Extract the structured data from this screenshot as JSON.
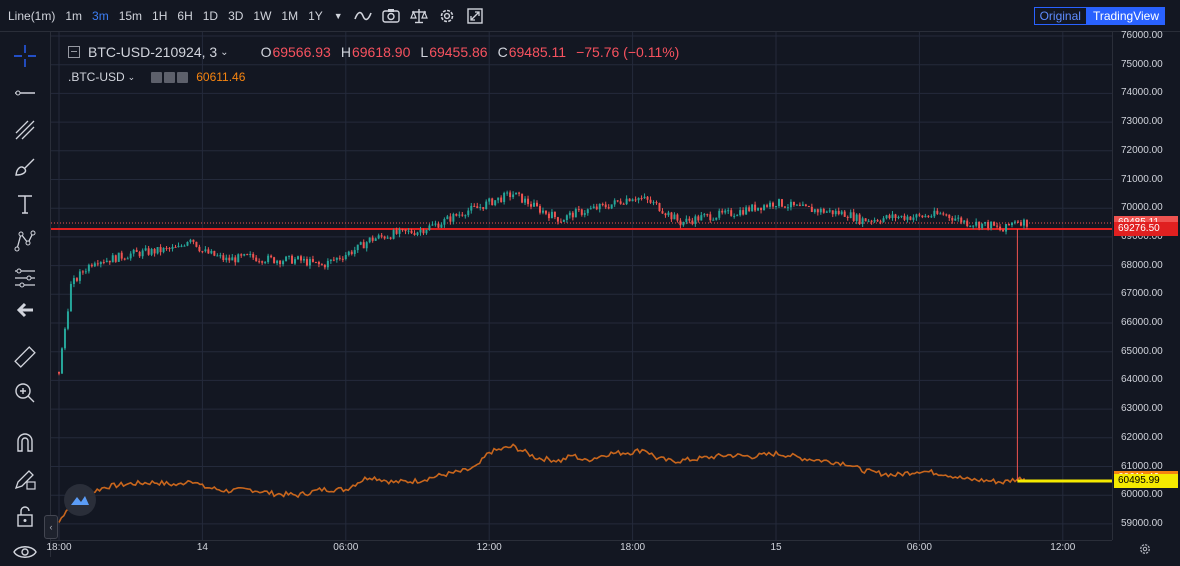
{
  "toolbar": {
    "chart_type": "Line(1m)",
    "timeframes": [
      "1m",
      "3m",
      "15m",
      "1H",
      "6H",
      "1D",
      "3D",
      "1W",
      "1M",
      "1Y"
    ],
    "selected_timeframe": "3m",
    "icons": [
      "caret-down-icon",
      "indicator-wave-icon",
      "camera-icon",
      "scales-icon",
      "gear-icon",
      "fullscreen-icon"
    ],
    "view_original": "Original",
    "view_tradingview": "TradingView"
  },
  "left_tools": [
    "crosshair-icon",
    "horizontal-line-icon",
    "trend-lines-icon",
    "brush-icon",
    "text-icon",
    "pattern-icon",
    "fib-tool-icon",
    "arrow-left-icon",
    "ruler-icon",
    "zoom-in-icon",
    "magnet-icon",
    "lock-draw-icon",
    "unlock-icon",
    "eye-icon"
  ],
  "legend": {
    "symbol": "BTC-USD-210924, 3",
    "o_label": "O",
    "o_value": "69566.93",
    "h_label": "H",
    "h_value": "69618.90",
    "l_label": "L",
    "l_value": "69455.86",
    "c_label": "C",
    "c_value": "69485.11",
    "change": "−75.76 (−0.11%)",
    "index_symbol": ".BTC-USD",
    "index_value": "60611.46"
  },
  "colors": {
    "background": "#131722",
    "grid": "#242a3b",
    "up": "#26a69a",
    "down": "#ef5350",
    "index_line": "#c8661d",
    "flat_line": "#f5ea00",
    "accent": "#2962ff"
  },
  "chart_data": {
    "type": "line",
    "title": "BTC-USD-210924, 3",
    "xlabel": "",
    "ylabel": "",
    "ylim": [
      58800,
      76100
    ],
    "yticks": [
      59000,
      60000,
      61000,
      62000,
      63000,
      64000,
      65000,
      66000,
      67000,
      68000,
      69000,
      70000,
      71000,
      72000,
      73000,
      74000,
      75000,
      76000
    ],
    "ytick_labels": [
      "59000.00",
      "60000.00",
      "61000.00",
      "62000.00",
      "63000.00",
      "64000.00",
      "65000.00",
      "66000.00",
      "67000.00",
      "68000.00",
      "69000.00",
      "70000.00",
      "71000.00",
      "72000.00",
      "73000.00",
      "74000.00",
      "75000.00",
      "76000.00"
    ],
    "xlim_hours": [
      0,
      48.6
    ],
    "xticks_hours": [
      0,
      6,
      12,
      18,
      24,
      30,
      36,
      42,
      48
    ],
    "xtick_labels": [
      "18:00",
      "14",
      "06:00",
      "12:00",
      "18:00",
      "15",
      "06:00",
      "12:00",
      ""
    ],
    "series": [
      {
        "name": "BTC-USD-210924",
        "style": "candles",
        "x_hours": [
          0,
          0.5,
          1,
          1.5,
          2,
          3,
          4,
          5,
          5.5,
          6,
          7,
          8,
          9,
          10,
          11,
          12,
          12.5,
          13,
          14,
          15,
          16,
          17,
          17.5,
          18,
          19,
          20,
          21,
          21.5,
          22,
          23,
          24,
          24.5,
          25,
          25.5,
          26,
          27,
          28,
          29,
          30,
          30.5,
          31,
          32,
          33,
          33.5,
          34,
          35,
          36,
          37,
          38,
          39,
          39.5,
          40,
          40.5
        ],
        "y": [
          64300,
          67300,
          67800,
          68200,
          68200,
          68400,
          68500,
          68600,
          69000,
          68500,
          68200,
          68300,
          68200,
          68200,
          68000,
          68400,
          68600,
          68900,
          69100,
          69200,
          69500,
          69900,
          70000,
          70200,
          70500,
          70000,
          69600,
          69800,
          69900,
          70100,
          70400,
          70300,
          70100,
          69800,
          69500,
          69700,
          69800,
          70000,
          70200,
          70100,
          70000,
          69900,
          69800,
          69600,
          69600,
          69700,
          69700,
          69800,
          69500,
          69400,
          69200,
          69600,
          69485.11
        ]
      },
      {
        "name": ".BTC-USD",
        "style": "line",
        "x_hours": [
          0,
          0.3,
          1,
          1.5,
          2,
          3,
          4,
          5,
          5.5,
          6,
          7,
          8,
          9,
          10,
          11,
          12,
          12.5,
          13,
          14,
          15,
          16,
          17,
          17.5,
          18,
          19,
          20,
          21,
          21.5,
          22,
          23,
          24,
          24.5,
          25,
          25.5,
          26,
          27,
          28,
          29,
          30,
          30.5,
          31,
          32,
          33,
          33.5,
          34,
          35,
          36,
          37,
          38,
          39,
          39.5,
          40,
          40.5
        ],
        "y": [
          59050,
          59500,
          59800,
          60150,
          60300,
          60400,
          60450,
          60350,
          60550,
          60300,
          60150,
          60200,
          60050,
          60000,
          60200,
          60200,
          60450,
          60650,
          60450,
          60500,
          60700,
          60850,
          61000,
          61500,
          61700,
          61300,
          61200,
          61400,
          61200,
          61450,
          61500,
          61600,
          61300,
          61200,
          61200,
          61300,
          61400,
          61350,
          61450,
          61400,
          61300,
          61200,
          61100,
          60900,
          60800,
          60700,
          60850,
          60750,
          60550,
          60500,
          60450,
          60550,
          60611.46
        ]
      },
      {
        "name": "flat",
        "style": "line",
        "x_hours": [
          40.1,
          48.6
        ],
        "y": [
          60495.99,
          60495.99
        ]
      }
    ],
    "spike": {
      "x_hours": 40.1,
      "y_from": 69276.5,
      "y_to": 60495.99
    },
    "hlines": [
      {
        "value": 69485.11,
        "style": "dotted"
      },
      {
        "value": 69276.5,
        "style": "solid"
      }
    ],
    "price_labels": [
      {
        "value": 69485.11,
        "text": "69485.11",
        "bg": "#ef5350",
        "fg": "#ffffff"
      },
      {
        "value": 69276.5,
        "text": "69276.50",
        "bg": "#e02020",
        "fg": "#ffffff"
      },
      {
        "value": 60611.46,
        "text": "60611.46",
        "bg": "#f68410",
        "fg": "#ffffff"
      },
      {
        "value": 60495.99,
        "text": "60495.99",
        "bg": "#f5ea00",
        "fg": "#000000"
      }
    ],
    "grid": true
  }
}
